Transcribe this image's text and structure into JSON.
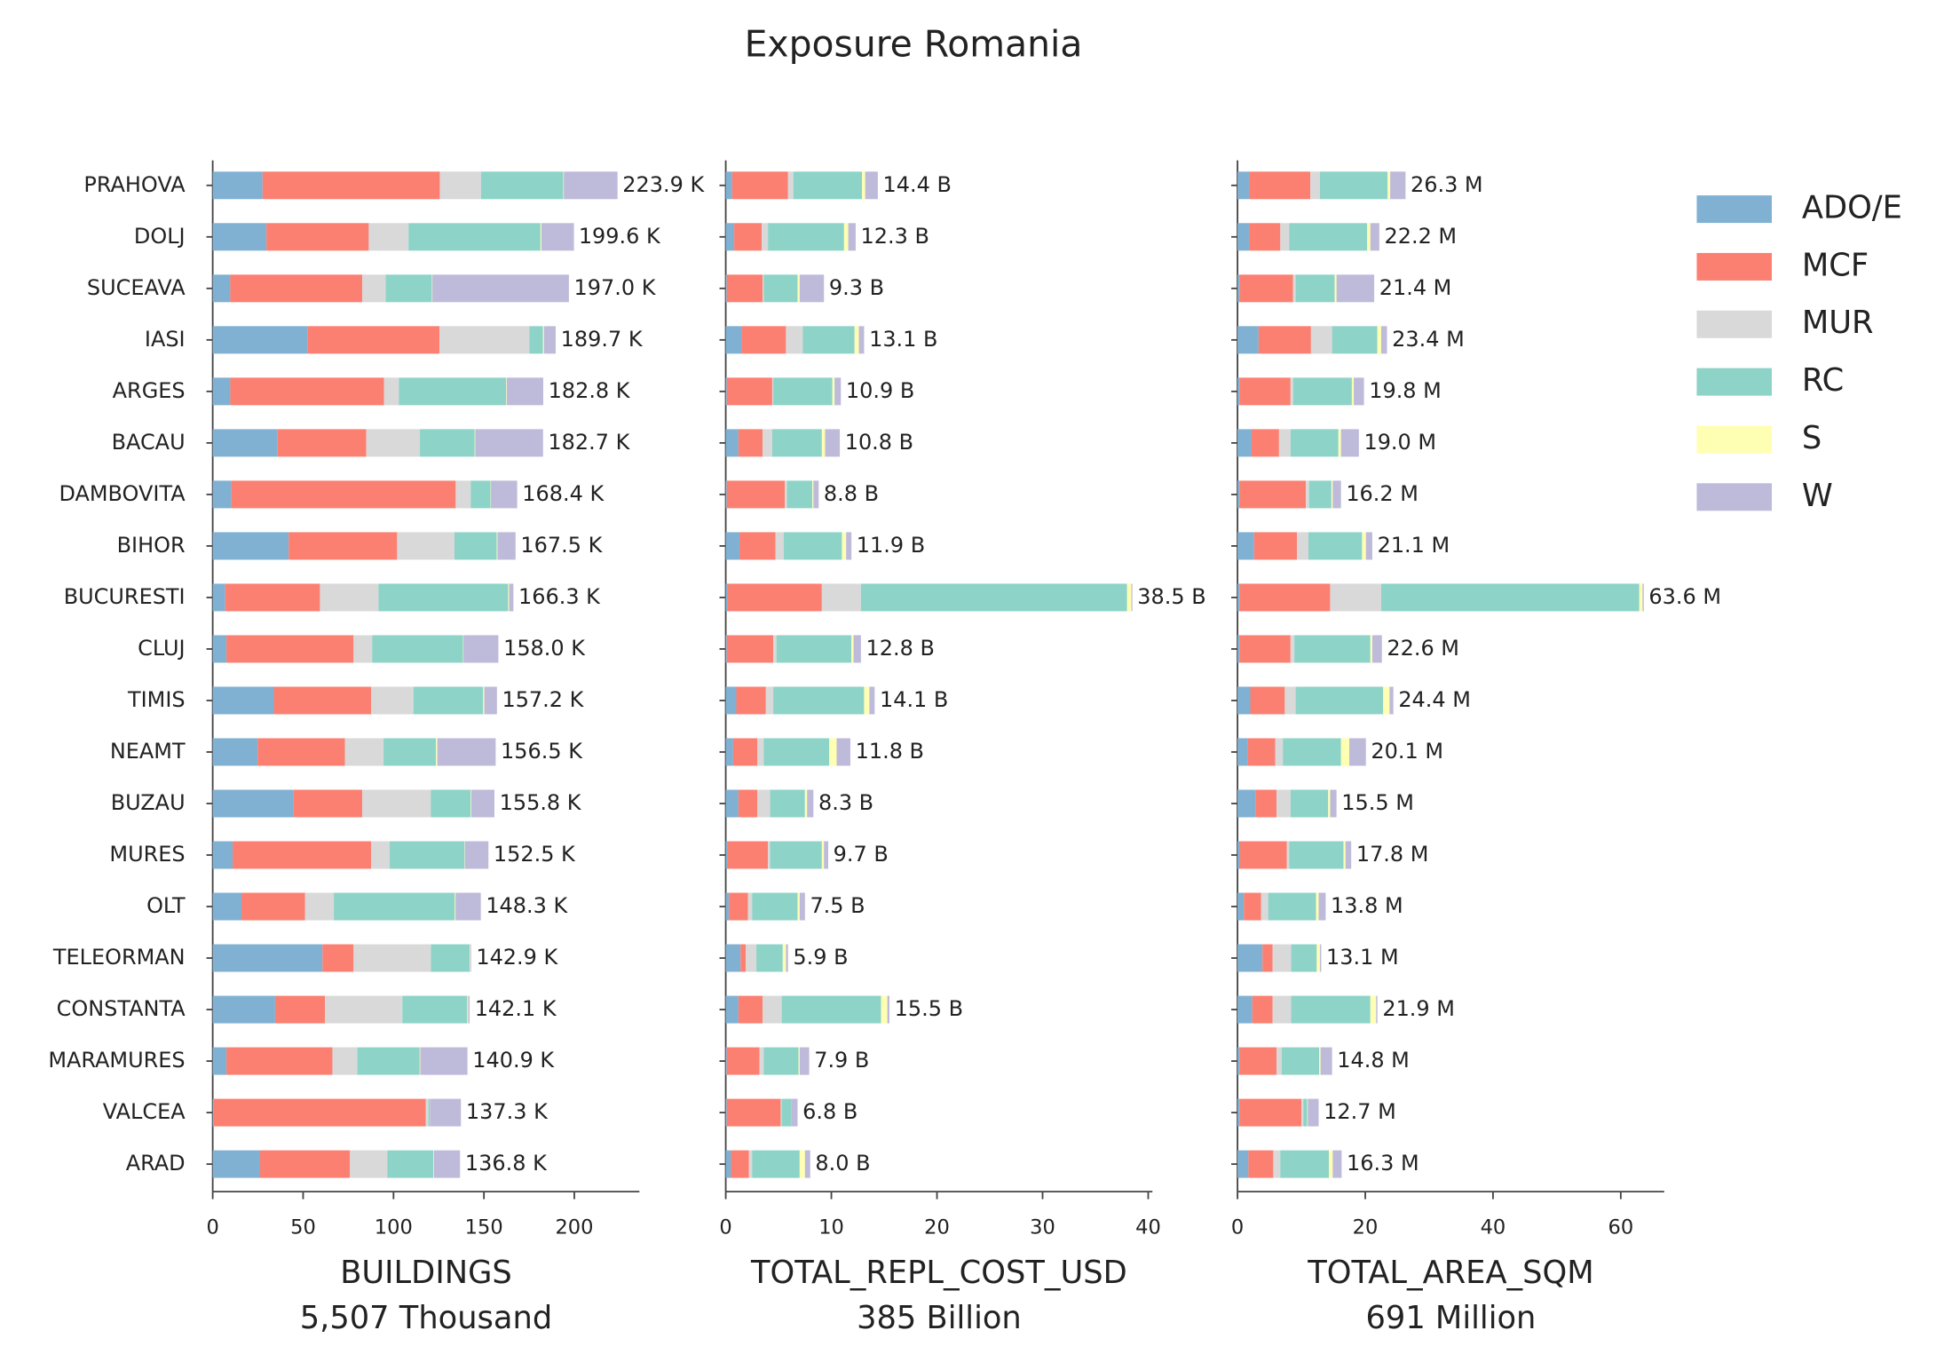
{
  "title": "Exposure Romania",
  "categories": [
    "PRAHOVA",
    "DOLJ",
    "SUCEAVA",
    "IASI",
    "ARGES",
    "BACAU",
    "DAMBOVITA",
    "BIHOR",
    "BUCURESTI",
    "CLUJ",
    "TIMIS",
    "NEAMT",
    "BUZAU",
    "MURES",
    "OLT",
    "TELEORMAN",
    "CONSTANTA",
    "MARAMURES",
    "VALCEA",
    "ARAD"
  ],
  "legend": [
    {
      "name": "ADO/E",
      "color": "#80b1d3"
    },
    {
      "name": "MCF",
      "color": "#fb8072"
    },
    {
      "name": "MUR",
      "color": "#d9d9d9"
    },
    {
      "name": "RC",
      "color": "#8dd3c7"
    },
    {
      "name": "S",
      "color": "#ffffb3"
    },
    {
      "name": "W",
      "color": "#bebada"
    }
  ],
  "chart_data": [
    {
      "type": "bar",
      "orientation": "horizontal",
      "stacked": true,
      "xlabel": "BUILDINGS",
      "subtitle": "5,507 Thousand",
      "xlim": [
        0,
        236
      ],
      "xticks": [
        0,
        50,
        100,
        150,
        200
      ],
      "series": [
        {
          "values": [
            27.6,
            29.7,
            9.7,
            52.4,
            9.7,
            35.9,
            10.3,
            42.0,
            6.9,
            7.6,
            33.8,
            24.8,
            44.8,
            11.0,
            15.9,
            60.7,
            34.5,
            7.6,
            0.5,
            26.2
          ]
        },
        {
          "values": [
            98.0,
            56.6,
            73.0,
            73.0,
            85.0,
            49.0,
            124.1,
            60.0,
            52.4,
            70.3,
            53.8,
            48.3,
            37.9,
            76.6,
            35.2,
            17.2,
            27.6,
            58.6,
            117.4,
            49.7
          ]
        },
        {
          "values": [
            22.8,
            22.0,
            13.0,
            49.7,
            8.3,
            29.7,
            8.3,
            31.7,
            32.4,
            10.3,
            23.4,
            21.4,
            37.9,
            10.3,
            15.9,
            42.8,
            42.8,
            13.8,
            1.4,
            20.7
          ]
        },
        {
          "values": [
            45.5,
            73.0,
            25.5,
            7.6,
            59.3,
            30.3,
            11.0,
            23.4,
            71.7,
            50.3,
            38.6,
            29.0,
            22.1,
            41.4,
            66.9,
            21.4,
            35.9,
            34.5,
            0.7,
            25.5
          ]
        },
        {
          "values": [
            0.3,
            0.5,
            0.3,
            0.5,
            0.3,
            0.3,
            0.2,
            0.4,
            0.5,
            0.2,
            0.6,
            0.7,
            0.3,
            0.2,
            0.4,
            0.3,
            0.5,
            0.3,
            0.1,
            0.3
          ]
        },
        {
          "values": [
            29.7,
            18.0,
            75.5,
            6.5,
            20.2,
            37.5,
            14.5,
            10.0,
            2.4,
            19.3,
            7.0,
            32.3,
            12.8,
            13.0,
            14.0,
            0.5,
            0.8,
            26.1,
            17.2,
            14.4
          ]
        }
      ],
      "totals": {
        "values": [
          223.9,
          199.6,
          197.0,
          189.7,
          182.8,
          182.7,
          168.4,
          167.5,
          166.3,
          158.0,
          157.2,
          156.5,
          155.8,
          152.5,
          148.3,
          142.9,
          142.1,
          140.9,
          137.3,
          136.8
        ],
        "value_labels": [
          "223.9 K",
          "199.6 K",
          "197.0 K",
          "189.7 K",
          "182.8 K",
          "182.7 K",
          "168.4 K",
          "167.5 K",
          "166.3 K",
          "158.0 K",
          "157.2 K",
          "156.5 K",
          "155.8 K",
          "152.5 K",
          "148.3 K",
          "142.9 K",
          "142.1 K",
          "140.9 K",
          "137.3 K",
          "136.8 K"
        ]
      }
    },
    {
      "type": "bar",
      "orientation": "horizontal",
      "stacked": true,
      "xlabel": "TOTAL_REPL_COST_USD",
      "subtitle": "385 Billion",
      "xlim": [
        0,
        40.4
      ],
      "xticks": [
        0,
        10,
        20,
        30,
        40
      ],
      "series": [
        {
          "values": [
            0.6,
            0.8,
            0.1,
            1.5,
            0.1,
            1.2,
            0.1,
            1.3,
            0.2,
            0.1,
            1.0,
            0.7,
            1.2,
            0.2,
            0.3,
            1.4,
            1.2,
            0.1,
            0.1,
            0.5
          ]
        },
        {
          "values": [
            5.3,
            2.6,
            3.4,
            4.2,
            4.3,
            2.3,
            5.5,
            3.4,
            8.9,
            4.4,
            2.8,
            2.3,
            1.8,
            3.8,
            1.8,
            0.5,
            2.3,
            3.1,
            5.1,
            1.7
          ]
        },
        {
          "values": [
            0.5,
            0.6,
            0.1,
            1.6,
            0.1,
            0.9,
            0.2,
            0.8,
            3.7,
            0.3,
            0.7,
            0.6,
            1.2,
            0.2,
            0.4,
            1.0,
            1.8,
            0.4,
            0.1,
            0.3
          ]
        },
        {
          "values": [
            6.5,
            7.2,
            3.2,
            4.9,
            5.6,
            4.7,
            2.4,
            5.5,
            25.2,
            7.1,
            8.6,
            6.2,
            3.3,
            4.9,
            4.3,
            2.5,
            9.4,
            3.3,
            0.9,
            4.5
          ]
        },
        {
          "values": [
            0.3,
            0.4,
            0.2,
            0.4,
            0.2,
            0.3,
            0.1,
            0.4,
            0.4,
            0.2,
            0.5,
            0.7,
            0.2,
            0.2,
            0.2,
            0.3,
            0.6,
            0.1,
            0.0,
            0.5
          ]
        },
        {
          "values": [
            1.2,
            0.7,
            2.3,
            0.5,
            0.6,
            1.4,
            0.5,
            0.5,
            0.1,
            0.7,
            0.5,
            1.3,
            0.6,
            0.4,
            0.5,
            0.2,
            0.2,
            0.9,
            0.6,
            0.5
          ]
        }
      ],
      "totals": {
        "values": [
          14.4,
          12.3,
          9.3,
          13.1,
          10.9,
          10.8,
          8.8,
          11.9,
          38.5,
          12.8,
          14.1,
          11.8,
          8.3,
          9.7,
          7.5,
          5.9,
          15.5,
          7.9,
          6.8,
          8.0
        ],
        "value_labels": [
          "14.4 B",
          "12.3 B",
          "9.3 B",
          "13.1 B",
          "10.9 B",
          "10.8 B",
          "8.8 B",
          "11.9 B",
          "38.5 B",
          "12.8 B",
          "14.1 B",
          "11.8 B",
          "8.3 B",
          "9.7 B",
          "7.5 B",
          "5.9 B",
          "15.5 B",
          "7.9 B",
          "6.8 B",
          "8.0 B"
        ]
      }
    },
    {
      "type": "bar",
      "orientation": "horizontal",
      "stacked": true,
      "xlabel": "TOTAL_AREA_SQM",
      "subtitle": "691 Million",
      "xlim": [
        0,
        66.8
      ],
      "xticks": [
        0,
        20,
        40,
        60
      ],
      "series": [
        {
          "values": [
            1.8,
            1.8,
            0.3,
            3.3,
            0.3,
            2.2,
            0.3,
            2.6,
            0.3,
            0.3,
            2.0,
            1.6,
            2.8,
            0.4,
            1.0,
            3.9,
            2.3,
            0.3,
            0.3,
            1.7
          ]
        },
        {
          "values": [
            9.6,
            4.9,
            8.4,
            8.2,
            8.0,
            4.3,
            10.4,
            6.7,
            14.2,
            8.0,
            5.4,
            4.3,
            3.3,
            7.3,
            2.7,
            1.6,
            3.2,
            5.8,
            9.7,
            3.9
          ]
        },
        {
          "values": [
            1.5,
            1.4,
            0.4,
            3.3,
            0.4,
            1.8,
            0.5,
            1.8,
            8.0,
            0.6,
            1.7,
            1.2,
            2.2,
            0.4,
            1.1,
            2.9,
            2.9,
            0.8,
            0.3,
            1.1
          ]
        },
        {
          "values": [
            10.6,
            12.2,
            6.1,
            7.1,
            9.2,
            7.5,
            3.5,
            8.4,
            40.4,
            11.9,
            13.7,
            9.1,
            5.9,
            8.5,
            7.5,
            4.0,
            12.4,
            5.9,
            0.6,
            7.6
          ]
        },
        {
          "values": [
            0.4,
            0.5,
            0.3,
            0.6,
            0.3,
            0.4,
            0.2,
            0.6,
            0.5,
            0.3,
            1.0,
            1.3,
            0.3,
            0.3,
            0.4,
            0.5,
            0.9,
            0.2,
            0.1,
            0.6
          ]
        },
        {
          "values": [
            2.4,
            1.4,
            5.9,
            0.9,
            1.6,
            2.8,
            1.3,
            1.0,
            0.2,
            1.5,
            0.6,
            2.6,
            1.0,
            0.9,
            1.1,
            0.2,
            0.2,
            1.8,
            1.7,
            1.4
          ]
        }
      ],
      "totals": {
        "values": [
          26.3,
          22.2,
          21.4,
          23.4,
          19.8,
          19.0,
          16.2,
          21.1,
          63.6,
          22.6,
          24.4,
          20.1,
          15.5,
          17.8,
          13.8,
          13.1,
          21.9,
          14.8,
          12.7,
          16.3
        ],
        "value_labels": [
          "26.3 M",
          "22.2 M",
          "21.4 M",
          "23.4 M",
          "19.8 M",
          "19.0 M",
          "16.2 M",
          "21.1 M",
          "63.6 M",
          "22.6 M",
          "24.4 M",
          "20.1 M",
          "15.5 M",
          "17.8 M",
          "13.8 M",
          "13.1 M",
          "21.9 M",
          "14.8 M",
          "12.7 M",
          "16.3 M"
        ]
      }
    }
  ]
}
